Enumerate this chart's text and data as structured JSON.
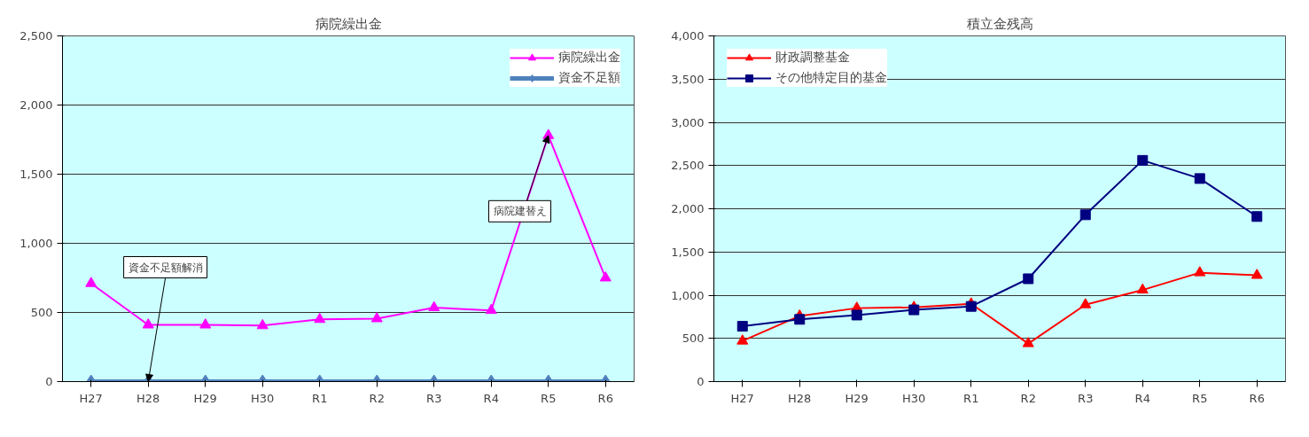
{
  "chart_data": [
    {
      "type": "line",
      "title": "病院繰出金",
      "categories": [
        "H27",
        "H28",
        "H29",
        "H30",
        "R1",
        "R2",
        "R3",
        "R4",
        "R5",
        "R6"
      ],
      "series": [
        {
          "name": "病院繰出金",
          "color": "#ff00ff",
          "marker": "triangle",
          "values": [
            710,
            410,
            410,
            405,
            450,
            455,
            535,
            515,
            1780,
            750
          ]
        },
        {
          "name": "資金不足額",
          "color": "#4f81bd",
          "marker": "diamond",
          "values": [
            0,
            0,
            0,
            0,
            0,
            0,
            0,
            0,
            0,
            0
          ]
        }
      ],
      "ylim": [
        0,
        2500
      ],
      "yticks": [
        {
          "value": 0,
          "label": "0"
        },
        {
          "value": 500,
          "label": "500"
        },
        {
          "value": 1000,
          "label": "1,000"
        },
        {
          "value": 1500,
          "label": "1,500"
        },
        {
          "value": 2000,
          "label": "2,000"
        },
        {
          "value": 2500,
          "label": "2,500"
        }
      ],
      "grid": "y",
      "legend": "top right",
      "annotations": [
        {
          "text": "資金不足額解消",
          "x": "H28",
          "y": 0
        },
        {
          "text": "病院建替え",
          "x": "R5",
          "y": 1780
        }
      ]
    },
    {
      "type": "line",
      "title": "積立金残高",
      "categories": [
        "H27",
        "H28",
        "H29",
        "H30",
        "R1",
        "R2",
        "R3",
        "R4",
        "R5",
        "R6"
      ],
      "series": [
        {
          "name": "財政調整基金",
          "color": "#ff0000",
          "marker": "triangle",
          "values": [
            470,
            760,
            850,
            860,
            900,
            440,
            890,
            1060,
            1260,
            1230
          ]
        },
        {
          "name": "その他特定目的基金",
          "color": "#000080",
          "marker": "square",
          "values": [
            640,
            720,
            770,
            830,
            870,
            1190,
            1930,
            2560,
            2350,
            1910
          ]
        }
      ],
      "ylim": [
        0,
        4000
      ],
      "yticks": [
        {
          "value": 0,
          "label": "0"
        },
        {
          "value": 500,
          "label": "500"
        },
        {
          "value": 1000,
          "label": "1,000"
        },
        {
          "value": 1500,
          "label": "1,500"
        },
        {
          "value": 2000,
          "label": "2,000"
        },
        {
          "value": 2500,
          "label": "2,500"
        },
        {
          "value": 3000,
          "label": "3,000"
        },
        {
          "value": 3500,
          "label": "3,500"
        },
        {
          "value": 4000,
          "label": "4,000"
        }
      ],
      "grid": "y",
      "legend": "top left"
    }
  ]
}
